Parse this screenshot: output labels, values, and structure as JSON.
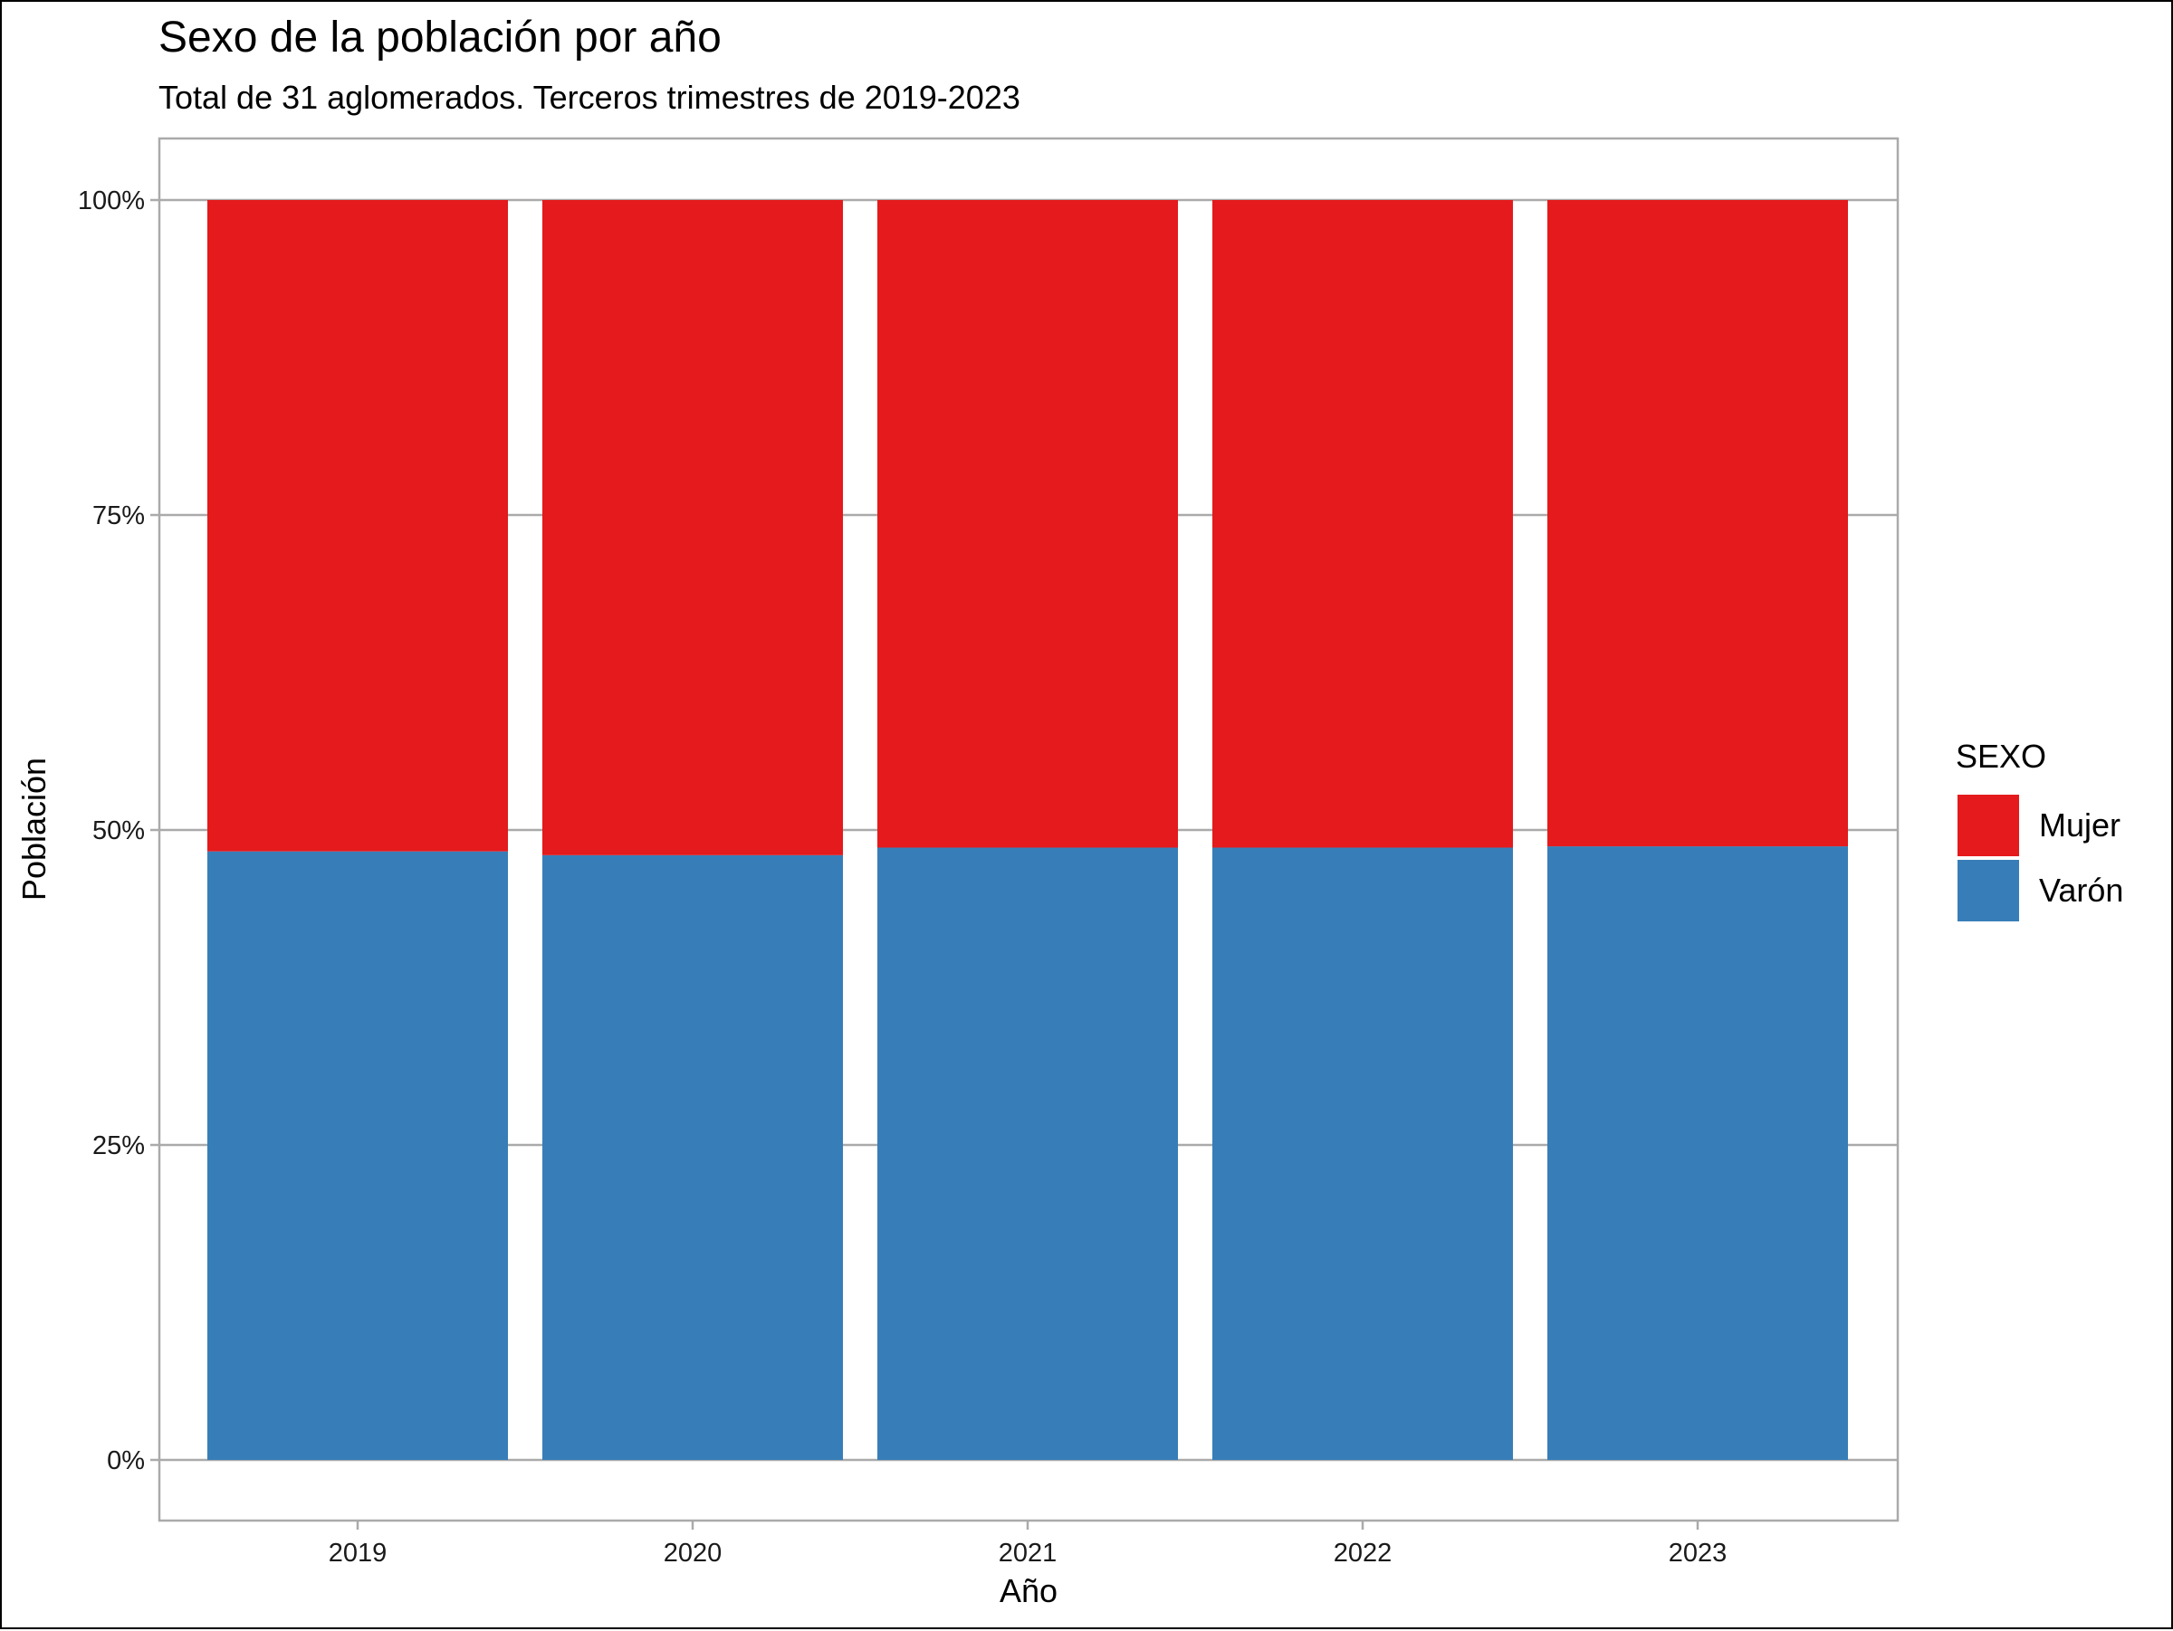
{
  "chart_data": {
    "type": "bar",
    "stacked": true,
    "percent": true,
    "title": "Sexo de la población por año",
    "subtitle": "Total de 31 aglomerados. Terceros trimestres de 2019-2023",
    "xlabel": "Año",
    "ylabel": "Población",
    "categories": [
      "2019",
      "2020",
      "2021",
      "2022",
      "2023"
    ],
    "series": [
      {
        "name": "Varón",
        "values": [
          48.3,
          48.0,
          48.6,
          48.6,
          48.7
        ],
        "color": "#377EB8"
      },
      {
        "name": "Mujer",
        "values": [
          51.7,
          52.0,
          51.4,
          51.4,
          51.3
        ],
        "color": "#E41A1C"
      }
    ],
    "ylim": [
      0,
      100
    ],
    "yticks": [
      "0%",
      "25%",
      "50%",
      "75%",
      "100%"
    ],
    "grid": true,
    "legend": {
      "title": "SEXO",
      "position": "right",
      "entries": [
        "Mujer",
        "Varón"
      ]
    }
  }
}
